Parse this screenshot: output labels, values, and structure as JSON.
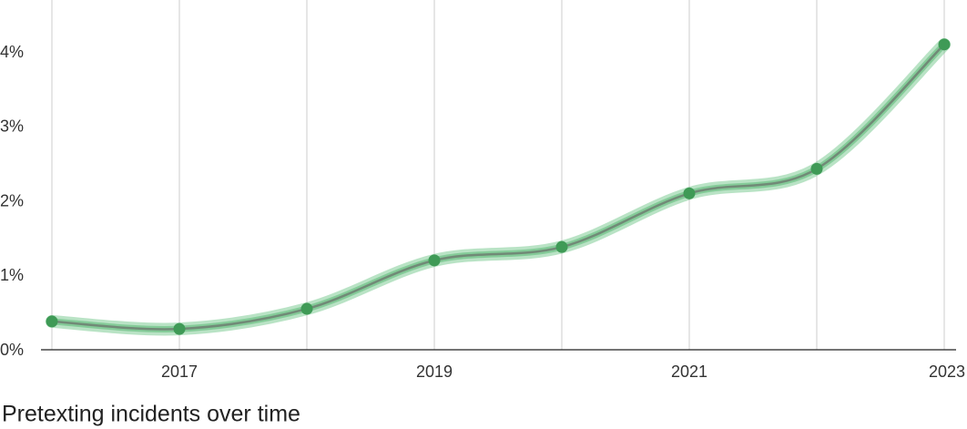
{
  "chart_data": {
    "type": "line",
    "title": "Pretexting incidents over time",
    "x": [
      2016,
      2017,
      2018,
      2019,
      2020,
      2021,
      2022,
      2023
    ],
    "series": [
      {
        "name": "Pretexting incidents",
        "color": "#3f9a56",
        "values": [
          0.38,
          0.28,
          0.55,
          1.2,
          1.38,
          2.1,
          2.43,
          4.1
        ]
      }
    ],
    "xlim": [
      2016,
      2023
    ],
    "xticks": [
      2017,
      2019,
      2021,
      2023
    ],
    "ylim": [
      0,
      4.2
    ],
    "yticks": [
      {
        "value": 0,
        "label": "0%"
      },
      {
        "value": 1,
        "label": "1%"
      },
      {
        "value": 2,
        "label": "2%"
      },
      {
        "value": 3,
        "label": "3%"
      },
      {
        "value": 4,
        "label": "4%"
      }
    ],
    "grid": true
  }
}
